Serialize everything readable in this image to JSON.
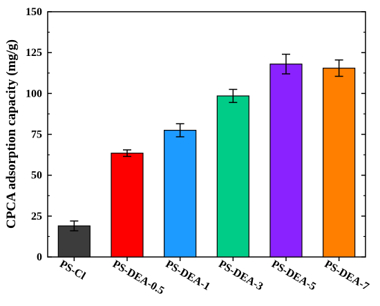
{
  "chart_data": {
    "type": "bar",
    "title": "",
    "xlabel": "",
    "ylabel": "CPCA adsorption capacity (mg/g)",
    "ylim": [
      0,
      150
    ],
    "yticks": [
      "0",
      "25",
      "50",
      "75",
      "100",
      "125",
      "150"
    ],
    "categories": [
      "PS-Cl",
      "PS-DEA-0.5",
      "PS-DEA-1",
      "PS-DEA-3",
      "PS-DEA-5",
      "PS-DEA-7"
    ],
    "values": [
      19,
      63.5,
      77.5,
      98.5,
      118,
      115.5
    ],
    "errors": [
      3,
      2,
      4,
      4,
      6,
      5
    ],
    "colors": [
      "#3c3c3c",
      "#ff0000",
      "#1e9bff",
      "#00cc88",
      "#8a22ff",
      "#ff8000"
    ],
    "grid": false,
    "legend": "none"
  }
}
